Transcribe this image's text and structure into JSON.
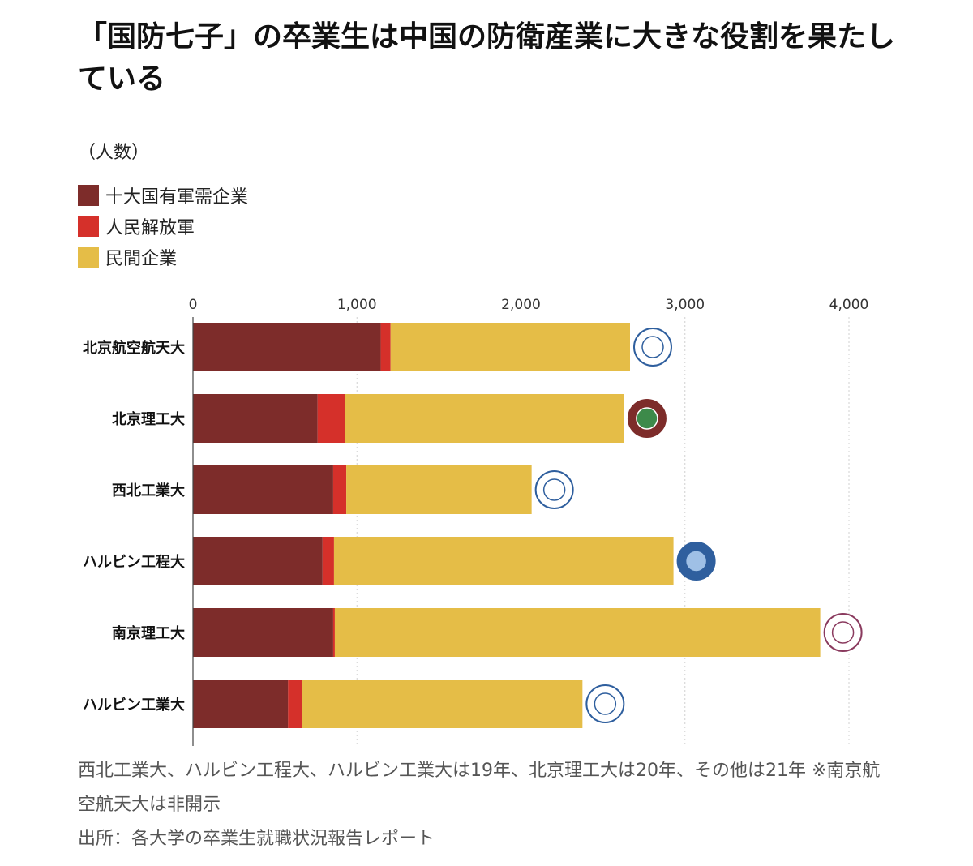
{
  "title": "「国防七子」の卒業生は中国の防衛産業に大きな役割を果たしている",
  "unit_label": "（人数）",
  "legend": [
    {
      "label": "十大国有軍需企業",
      "color": "#7d2c2a"
    },
    {
      "label": "人民解放軍",
      "color": "#d5302a"
    },
    {
      "label": "民間企業",
      "color": "#e5bd47"
    }
  ],
  "footnote": {
    "line1": "西北工業大、ハルビン工程大、ハルビン工業大は19年、北京理工大は20年、その他は21年 ※南京航空航天大は非開示",
    "source": "出所：各大学の卒業生就職状況報告レポート"
  },
  "chart_data": {
    "type": "bar",
    "orientation": "horizontal",
    "stacked": true,
    "categories": [
      "北京航空航天大",
      "北京理工大",
      "西北工業大",
      "ハルビン工程大",
      "南京理工大",
      "ハルビン工業大"
    ],
    "series": [
      {
        "name": "十大国有軍需企業",
        "color": "#7d2c2a",
        "values": [
          1145,
          760,
          855,
          790,
          855,
          580
        ]
      },
      {
        "name": "人民解放軍",
        "color": "#d5302a",
        "values": [
          60,
          165,
          80,
          70,
          10,
          85
        ]
      },
      {
        "name": "民間企業",
        "color": "#e5bd47",
        "values": [
          1460,
          1705,
          1130,
          2070,
          2960,
          1710
        ]
      }
    ],
    "ticks": [
      0,
      1000,
      2000,
      3000,
      4000
    ],
    "tick_labels": [
      "0",
      "1,000",
      "2,000",
      "3,000",
      "4,000"
    ],
    "xlim": [
      0,
      4000
    ],
    "grid": true,
    "legend_position": "top-left"
  }
}
